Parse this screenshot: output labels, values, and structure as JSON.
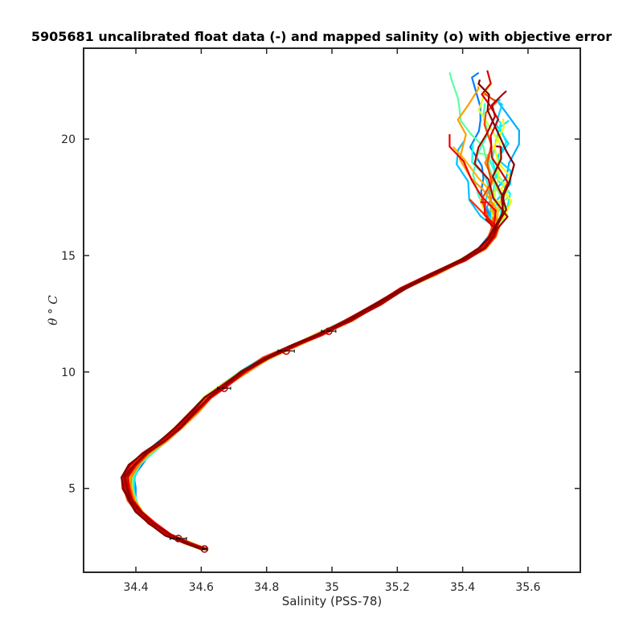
{
  "chart_data": {
    "type": "line",
    "title": "5905681 uncalibrated float data (-) and mapped salinity (o) with objective error",
    "xlabel": "Salinity (PSS-78)",
    "ylabel": "θ ° C",
    "xlim": [
      34.24,
      35.76
    ],
    "ylim": [
      1.4,
      23.9
    ],
    "xticks": [
      34.4,
      34.6,
      34.8,
      35.0,
      35.2,
      35.4,
      35.6
    ],
    "xtick_labels": [
      "34.4",
      "34.6",
      "34.8",
      "35",
      "35.2",
      "35.4",
      "35.6"
    ],
    "yticks": [
      5,
      10,
      15,
      20
    ],
    "ytick_labels": [
      "5",
      "10",
      "15",
      "20"
    ],
    "grid": false,
    "base_profile": [
      [
        34.61,
        2.4
      ],
      [
        34.56,
        2.65
      ],
      [
        34.5,
        3.0
      ],
      [
        34.45,
        3.5
      ],
      [
        34.41,
        4.0
      ],
      [
        34.395,
        4.5
      ],
      [
        34.39,
        5.0
      ],
      [
        34.39,
        5.5
      ],
      [
        34.41,
        6.0
      ],
      [
        34.44,
        6.5
      ],
      [
        34.48,
        7.0
      ],
      [
        34.53,
        7.6
      ],
      [
        34.58,
        8.3
      ],
      [
        34.62,
        8.9
      ],
      [
        34.67,
        9.4
      ],
      [
        34.73,
        10.0
      ],
      [
        34.8,
        10.6
      ],
      [
        34.88,
        11.1
      ],
      [
        34.96,
        11.6
      ],
      [
        35.05,
        12.2
      ],
      [
        35.14,
        12.9
      ],
      [
        35.22,
        13.6
      ],
      [
        35.31,
        14.2
      ],
      [
        35.4,
        14.8
      ],
      [
        35.46,
        15.3
      ],
      [
        35.49,
        15.8
      ],
      [
        35.5,
        16.2
      ]
    ],
    "profile_count": 36,
    "color_scale": "jet",
    "mapped_salinity": [
      {
        "x": 34.61,
        "y": 2.4,
        "err": 0.006
      },
      {
        "x": 34.53,
        "y": 2.85,
        "err": 0.025
      },
      {
        "x": 34.67,
        "y": 9.3,
        "err": 0.02
      },
      {
        "x": 34.86,
        "y": 10.9,
        "err": 0.025
      },
      {
        "x": 34.99,
        "y": 11.75,
        "err": 0.022
      }
    ]
  }
}
